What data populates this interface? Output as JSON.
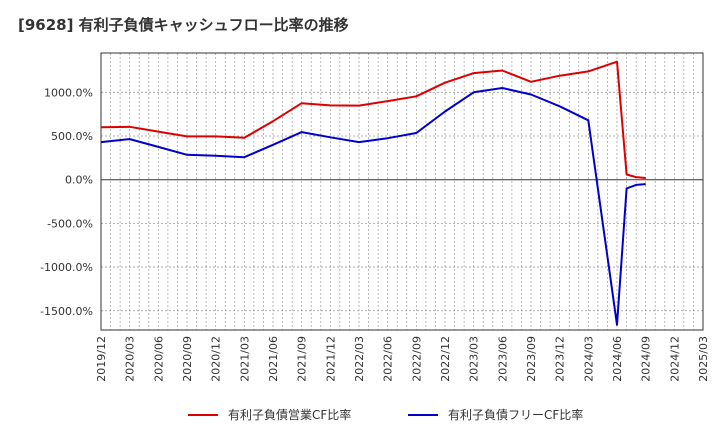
{
  "title": "[9628]  有利子負債キャッシュフロー比率の推移",
  "chart_data": {
    "type": "line",
    "xlabel": "",
    "ylabel": "",
    "ylim": [
      -1720,
      1450
    ],
    "y_ticks": [
      1000,
      500,
      0,
      -500,
      -1000,
      -1500
    ],
    "y_tick_labels": [
      "1000.0%",
      "500.0%",
      "0.0%",
      "-500.0%",
      "-1000.0%",
      "-1500.0%"
    ],
    "x_tick_labels": [
      "2019/12",
      "2020/03",
      "2020/06",
      "2020/09",
      "2020/12",
      "2021/03",
      "2021/06",
      "2021/09",
      "2021/12",
      "2022/03",
      "2022/06",
      "2022/09",
      "2022/12",
      "2023/03",
      "2023/06",
      "2023/09",
      "2023/12",
      "2024/03",
      "2024/06",
      "2024/09",
      "2024/12",
      "2025/03"
    ],
    "grid": true,
    "legend_position": "bottom",
    "series": [
      {
        "name": "有利子負債営業CF比率",
        "color": "#dd0000",
        "points": [
          [
            "2019/12",
            600
          ],
          [
            "2020/03",
            605
          ],
          [
            "2020/06",
            550
          ],
          [
            "2020/09",
            495
          ],
          [
            "2020/12",
            495
          ],
          [
            "2021/03",
            480
          ],
          [
            "2021/06",
            670
          ],
          [
            "2021/09",
            875
          ],
          [
            "2021/12",
            850
          ],
          [
            "2022/03",
            848
          ],
          [
            "2022/06",
            900
          ],
          [
            "2022/09",
            955
          ],
          [
            "2022/12",
            1110
          ],
          [
            "2023/03",
            1220
          ],
          [
            "2023/06",
            1250
          ],
          [
            "2023/09",
            1120
          ],
          [
            "2023/12",
            1190
          ],
          [
            "2024/03",
            1240
          ],
          [
            "2024/06",
            1350
          ],
          [
            "2024/07",
            60
          ],
          [
            "2024/08",
            30
          ],
          [
            "2024/09",
            20
          ]
        ]
      },
      {
        "name": "有利子負債フリーCF比率",
        "color": "#0000cc",
        "points": [
          [
            "2019/12",
            430
          ],
          [
            "2020/03",
            465
          ],
          [
            "2020/06",
            375
          ],
          [
            "2020/09",
            285
          ],
          [
            "2020/12",
            275
          ],
          [
            "2021/03",
            258
          ],
          [
            "2021/06",
            400
          ],
          [
            "2021/09",
            545
          ],
          [
            "2021/12",
            485
          ],
          [
            "2022/03",
            430
          ],
          [
            "2022/06",
            475
          ],
          [
            "2022/09",
            535
          ],
          [
            "2022/12",
            780
          ],
          [
            "2023/03",
            1000
          ],
          [
            "2023/06",
            1050
          ],
          [
            "2023/09",
            975
          ],
          [
            "2023/12",
            840
          ],
          [
            "2024/03",
            680
          ],
          [
            "2024/06",
            -1660
          ],
          [
            "2024/07",
            -100
          ],
          [
            "2024/08",
            -60
          ],
          [
            "2024/09",
            -50
          ]
        ]
      }
    ]
  }
}
